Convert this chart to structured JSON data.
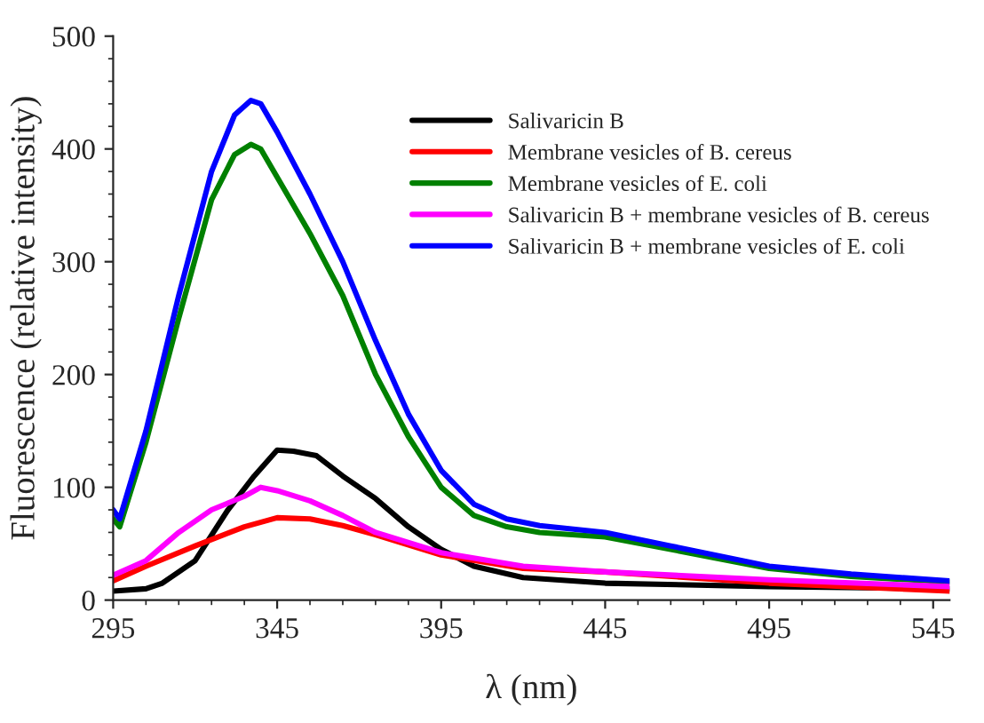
{
  "chart_data": {
    "type": "line",
    "xlabel": "λ (nm)",
    "ylabel": "Fluorescence (relative intensity)",
    "xlim": [
      295,
      550
    ],
    "xticks": [
      295,
      345,
      395,
      445,
      495,
      545
    ],
    "ylim": [
      0,
      500
    ],
    "yticks": [
      0,
      100,
      200,
      300,
      400,
      500
    ],
    "grid": false,
    "legend": "top right",
    "marker": "none",
    "line_style": "solid",
    "series": [
      {
        "name": "Salivaricin B",
        "color": "#000000",
        "x": [
          295,
          305,
          310,
          320,
          330,
          338,
          345,
          350,
          357,
          365,
          375,
          385,
          395,
          405,
          420,
          445,
          495,
          550
        ],
        "values": [
          8,
          10,
          15,
          35,
          80,
          110,
          133,
          132,
          128,
          110,
          90,
          65,
          45,
          30,
          20,
          15,
          12,
          10
        ]
      },
      {
        "name": "Membrane vesicles of B. cereus",
        "color": "#ff0000",
        "x": [
          295,
          305,
          320,
          335,
          345,
          355,
          365,
          375,
          395,
          420,
          445,
          495,
          550
        ],
        "values": [
          17,
          30,
          48,
          65,
          73,
          72,
          66,
          58,
          40,
          28,
          25,
          15,
          8
        ]
      },
      {
        "name": "Membrane vesicles of E. coli",
        "color": "#008000",
        "x": [
          295,
          297,
          305,
          315,
          325,
          332,
          337,
          340,
          345,
          355,
          365,
          375,
          385,
          395,
          405,
          415,
          425,
          445,
          465,
          495,
          520,
          550
        ],
        "values": [
          72,
          65,
          140,
          250,
          355,
          395,
          404,
          400,
          375,
          325,
          270,
          200,
          145,
          100,
          75,
          65,
          60,
          56,
          45,
          28,
          21,
          16
        ]
      },
      {
        "name": "Salivaricin B + membrane vesicles of B. cereus",
        "color": "#ff00ff",
        "x": [
          295,
          305,
          315,
          325,
          335,
          340,
          345,
          355,
          365,
          375,
          395,
          420,
          445,
          495,
          550
        ],
        "values": [
          22,
          35,
          60,
          80,
          92,
          100,
          97,
          88,
          75,
          60,
          42,
          30,
          25,
          18,
          12
        ]
      },
      {
        "name": "Salivaricin B + membrane vesicles of E. coli",
        "color": "#0000ff",
        "x": [
          295,
          297,
          305,
          315,
          325,
          332,
          337,
          340,
          345,
          355,
          365,
          375,
          385,
          395,
          405,
          415,
          425,
          445,
          465,
          495,
          520,
          550
        ],
        "values": [
          80,
          72,
          150,
          270,
          380,
          430,
          443,
          440,
          415,
          360,
          300,
          230,
          165,
          115,
          85,
          72,
          66,
          60,
          48,
          30,
          23,
          17
        ]
      }
    ]
  }
}
